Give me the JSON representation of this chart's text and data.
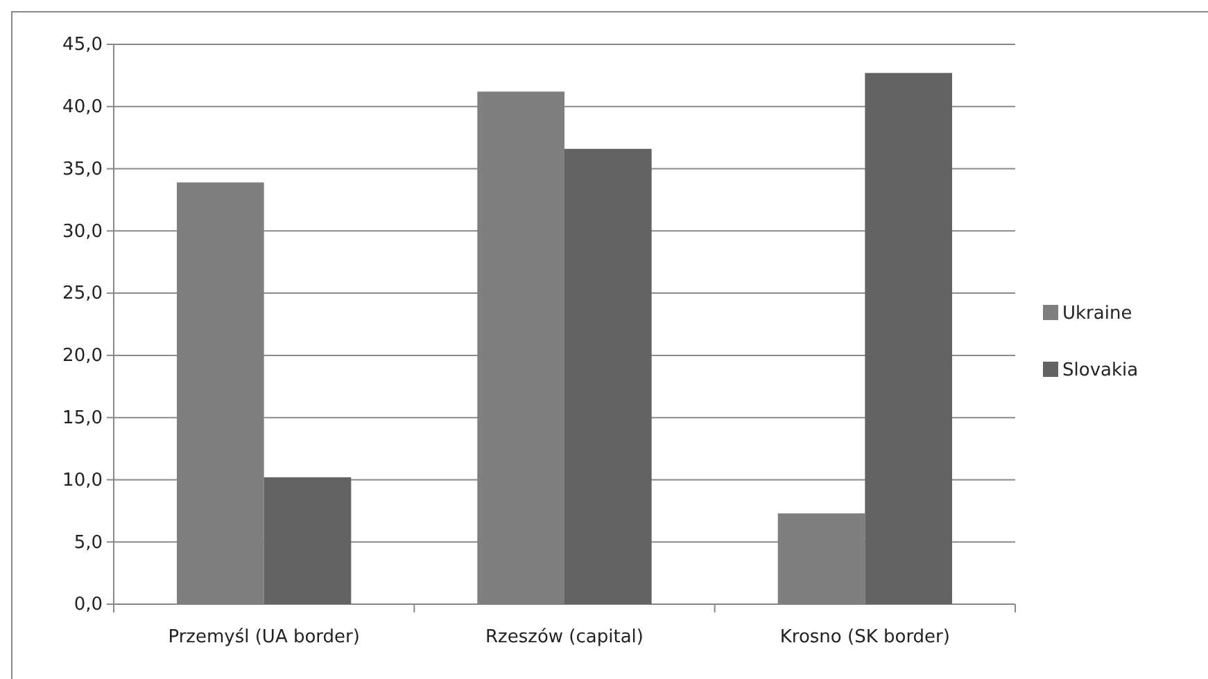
{
  "chart_data": {
    "type": "bar",
    "categories": [
      "Przemyśl (UA border)",
      "Rzeszów (capital)",
      "Krosno (SK border)"
    ],
    "series": [
      {
        "name": "Ukraine",
        "color": "#7f7f7f",
        "values": [
          33.9,
          41.2,
          7.3
        ]
      },
      {
        "name": "Slovakia",
        "color": "#636363",
        "values": [
          10.2,
          36.6,
          42.7
        ]
      }
    ],
    "ylim": [
      0,
      45
    ],
    "yticks": [
      {
        "value": 0,
        "label": "0,0"
      },
      {
        "value": 5,
        "label": "5,0"
      },
      {
        "value": 10,
        "label": "10,0"
      },
      {
        "value": 15,
        "label": "15,0"
      },
      {
        "value": 20,
        "label": "20,0"
      },
      {
        "value": 25,
        "label": "25,0"
      },
      {
        "value": 30,
        "label": "30,0"
      },
      {
        "value": 35,
        "label": "35,0"
      },
      {
        "value": 40,
        "label": "40,0"
      },
      {
        "value": 45,
        "label": "45,0"
      }
    ],
    "grid": "y",
    "legend": "right"
  }
}
